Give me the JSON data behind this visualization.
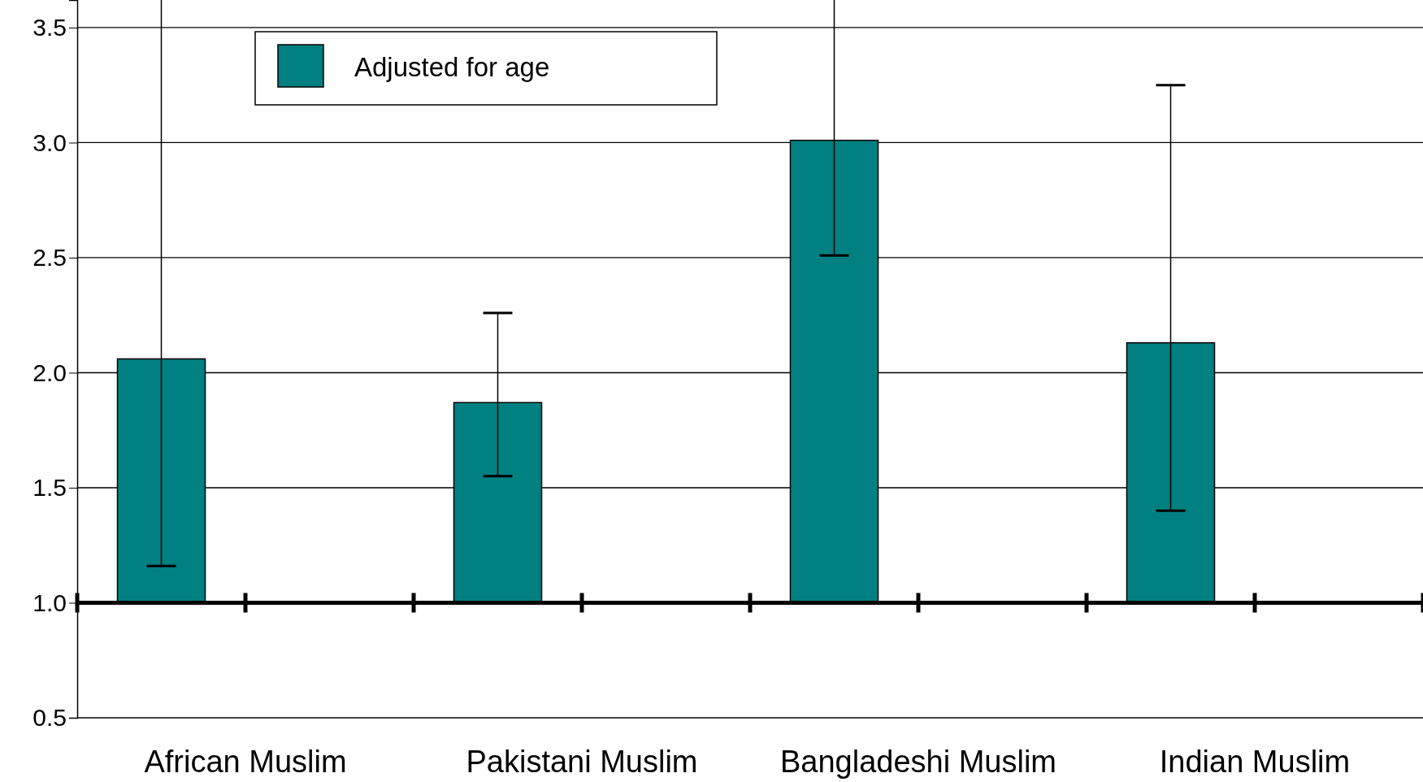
{
  "chart_data": {
    "type": "bar",
    "categories": [
      "African Muslim",
      "Pakistani Muslim",
      "Bangladeshi Muslim",
      "Indian Muslim"
    ],
    "series": [
      {
        "name": "Adjusted for age",
        "color": "#008080",
        "values": [
          1.06,
          0.87,
          2.01,
          1.13
        ],
        "base": [
          1,
          1,
          1,
          1
        ],
        "errors": [
          [
            1.16,
            3.62
          ],
          [
            1.55,
            2.26
          ],
          [
            2.51,
            3.62
          ],
          [
            1.4,
            3.25
          ]
        ]
      }
    ],
    "ylim": [
      0.5,
      3.62
    ],
    "yticks": [
      {
        "value": 0.5,
        "label": "0.5"
      },
      {
        "value": 1,
        "label": "1.0"
      },
      {
        "value": 1.5,
        "label": "1.5"
      },
      {
        "value": 2,
        "label": "2.0"
      },
      {
        "value": 2.5,
        "label": "2.5"
      },
      {
        "value": 3,
        "label": "3.0"
      },
      {
        "value": 3.5,
        "label": "3.5"
      }
    ],
    "grid": "y",
    "legend": "top left",
    "ref_lines": [
      {
        "axis": "y",
        "value": 1
      }
    ]
  }
}
